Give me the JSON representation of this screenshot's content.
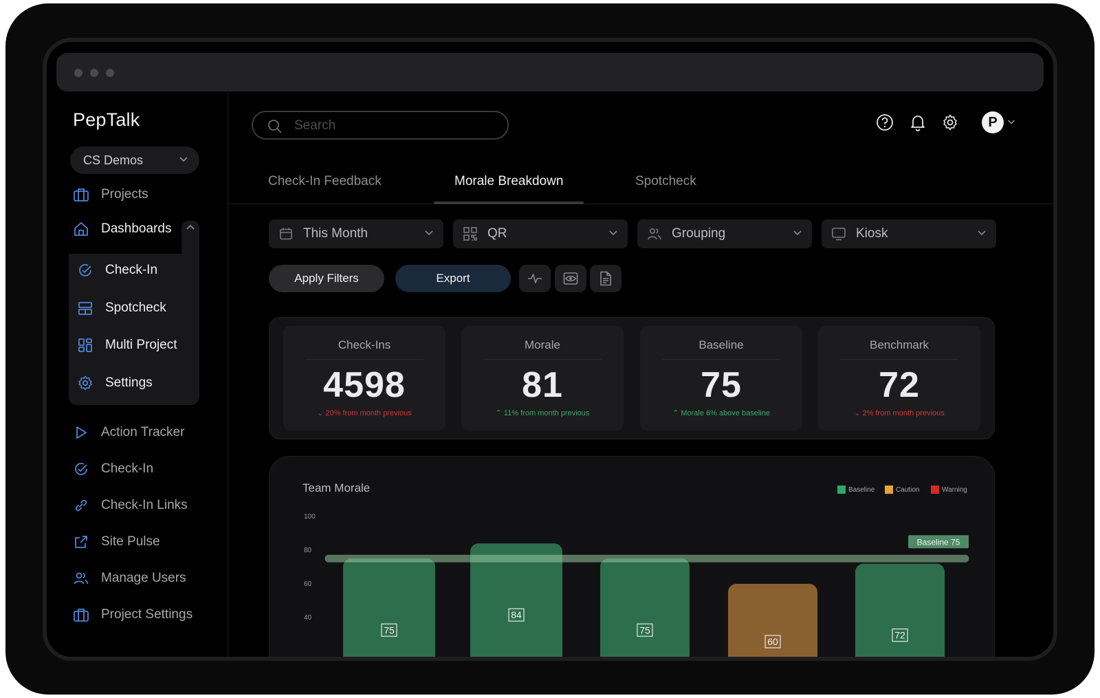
{
  "app": {
    "name": "PepTalk",
    "org": "CS Demos"
  },
  "sidebar": {
    "projects": "Projects",
    "dashboards": "Dashboards",
    "dashboard_items": [
      "Check-In",
      "Spotcheck",
      "Multi Project",
      "Settings"
    ],
    "items": [
      "Action Tracker",
      "Check-In",
      "Check-In Links",
      "Site Pulse",
      "Manage Users",
      "Project Settings"
    ]
  },
  "header": {
    "search_placeholder": "Search",
    "avatar_initial": "P"
  },
  "tabs": [
    "Check-In Feedback",
    "Morale Breakdown",
    "Spotcheck"
  ],
  "filters": [
    "This Month",
    "QR",
    "Grouping",
    "Kiosk"
  ],
  "actions": {
    "apply": "Apply Filters",
    "export": "Export"
  },
  "stats": [
    {
      "label": "Check-Ins",
      "value": "4598",
      "change": "20% from month previous",
      "direction": "down"
    },
    {
      "label": "Morale",
      "value": "81",
      "change": "11% from month previous",
      "direction": "up"
    },
    {
      "label": "Baseline",
      "value": "75",
      "change": "Morale 6% above baseline",
      "direction": "up"
    },
    {
      "label": "Benchmark",
      "value": "72",
      "change": "2% from month previous",
      "direction": "down"
    }
  ],
  "colors": {
    "baseline": "#2e7d52",
    "caution": "#a06a2c",
    "warning": "#d42a2a",
    "down": "#d4343a",
    "up": "#3aa86a"
  },
  "chart_data": {
    "type": "bar",
    "title": "Team Morale",
    "legend": [
      {
        "name": "Baseline",
        "color": "#2ea866"
      },
      {
        "name": "Caution",
        "color": "#e8a13a"
      },
      {
        "name": "Warning",
        "color": "#d42a2a"
      }
    ],
    "legend_position": "top-right",
    "y_ticks": [
      "100",
      "80",
      "60",
      "40"
    ],
    "ylim": [
      0,
      100
    ],
    "values": [
      75,
      84,
      75,
      60,
      72
    ],
    "statuses": [
      "baseline",
      "baseline",
      "baseline",
      "caution",
      "baseline"
    ],
    "baseline_value": 75,
    "baseline_label": "Baseline 75"
  }
}
